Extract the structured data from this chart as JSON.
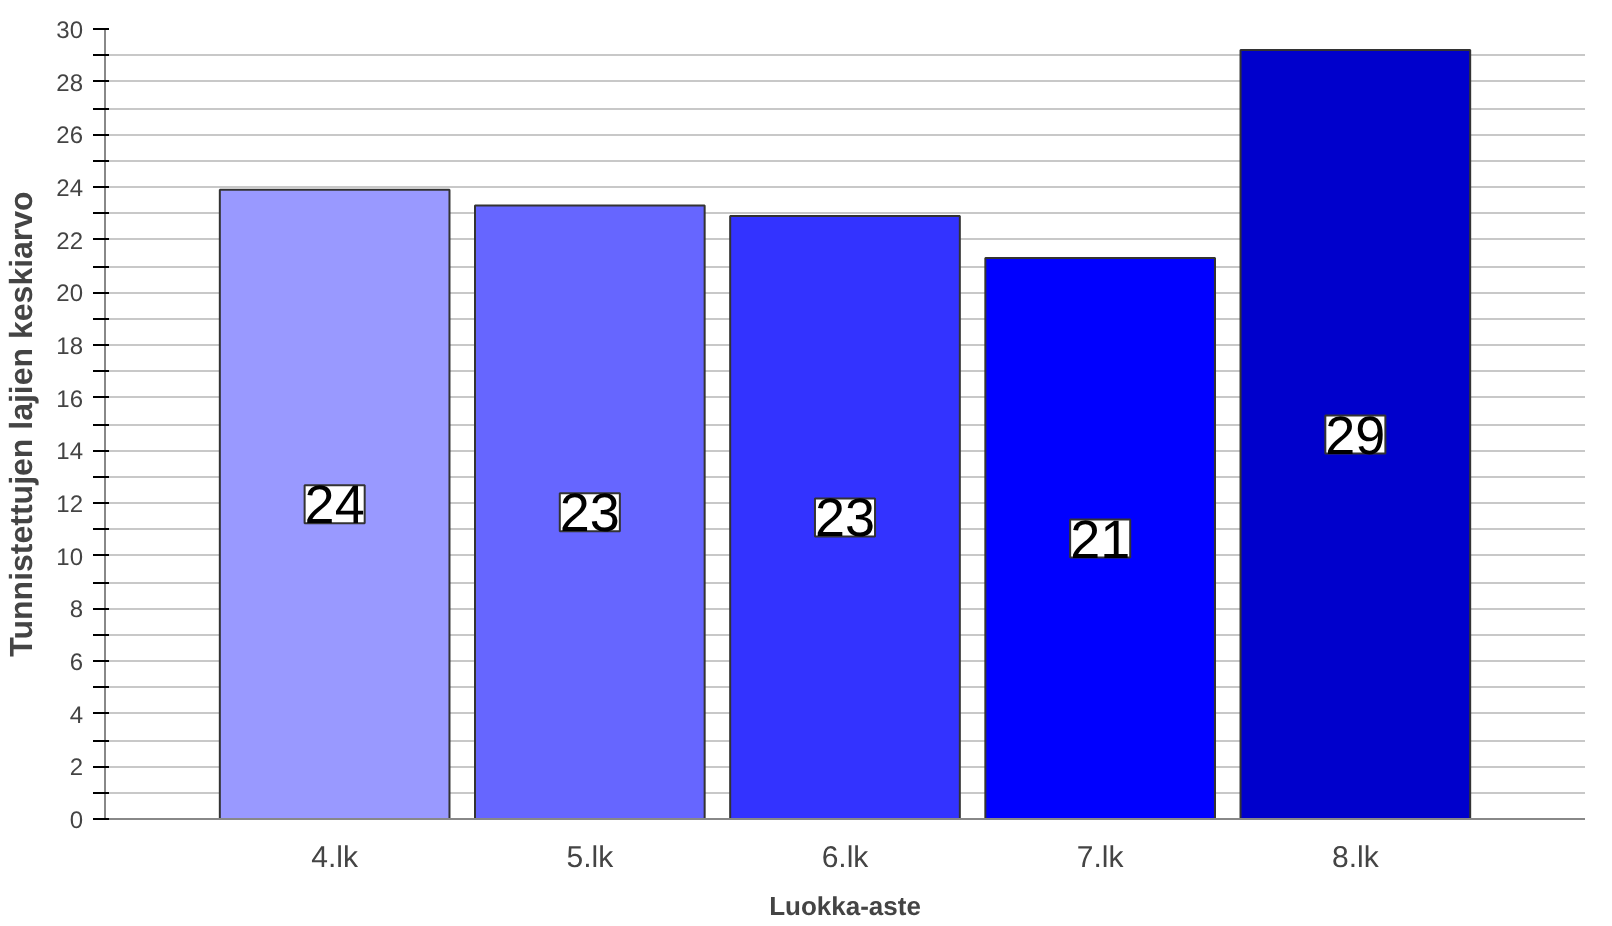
{
  "chart_data": {
    "type": "bar",
    "xlabel": "Luokka-aste",
    "ylabel": "Tunnistettujen lajien keskiarvo",
    "categories": [
      "4.lk",
      "5.lk",
      "6.lk",
      "7.lk",
      "8.lk"
    ],
    "values": [
      23.9,
      23.3,
      22.9,
      21.3,
      29.2
    ],
    "colors": [
      "#9999ff",
      "#6666ff",
      "#3333ff",
      "#0000ff",
      "#0000cc"
    ],
    "value_labels": [
      "24",
      "23",
      "23",
      "21",
      "29"
    ],
    "ylim": [
      0,
      30
    ],
    "yticks": [
      0,
      {
        "value": 1,
        "label": null
      },
      2,
      {
        "value": 3,
        "label": null
      },
      4,
      {
        "value": 5,
        "label": null
      },
      6,
      {
        "value": 7,
        "label": null
      },
      8,
      {
        "value": 9,
        "label": null
      },
      10,
      {
        "value": 11,
        "label": null
      },
      12,
      {
        "value": 13,
        "label": null
      },
      14,
      {
        "value": 15,
        "label": null
      },
      16,
      {
        "value": 17,
        "label": null
      },
      18,
      {
        "value": 19,
        "label": null
      },
      20,
      {
        "value": 21,
        "label": null
      },
      22,
      {
        "value": 23,
        "label": null
      },
      24,
      {
        "value": 25,
        "label": null
      },
      26,
      {
        "value": 27,
        "label": null
      },
      28,
      {
        "value": 29,
        "label": null
      },
      30
    ],
    "grid": "y"
  }
}
